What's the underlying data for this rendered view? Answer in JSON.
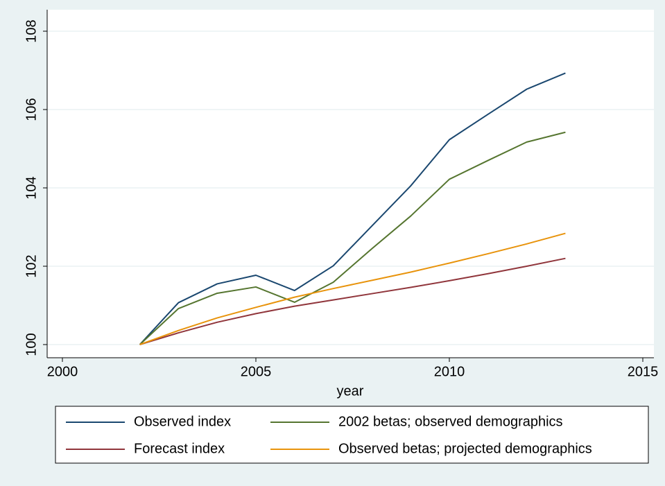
{
  "chart_data": {
    "type": "line",
    "x": [
      2002,
      2003,
      2004,
      2005,
      2006,
      2007,
      2008,
      2009,
      2010,
      2011,
      2012,
      2013
    ],
    "series": [
      {
        "name": "Observed index",
        "color": "#1a476f",
        "values": [
          100,
          101.07,
          101.55,
          101.77,
          101.38,
          102.01,
          103.03,
          104.05,
          105.23,
          105.88,
          106.52,
          106.93
        ]
      },
      {
        "name": "2002 betas; observed demographics",
        "color": "#55752f",
        "values": [
          100,
          100.92,
          101.31,
          101.47,
          101.08,
          101.59,
          102.45,
          103.28,
          104.22,
          104.7,
          105.17,
          105.42
        ]
      },
      {
        "name": "Forecast index",
        "color": "#90353b",
        "values": [
          100,
          100.3,
          100.57,
          100.79,
          100.98,
          101.14,
          101.3,
          101.46,
          101.63,
          101.81,
          102.0,
          102.2
        ]
      },
      {
        "name": "Observed betas; projected demographics",
        "color": "#e8930b",
        "values": [
          100,
          100.36,
          100.68,
          100.95,
          101.21,
          101.43,
          101.64,
          101.85,
          102.08,
          102.32,
          102.57,
          102.84
        ]
      }
    ],
    "xlabel": "year",
    "xlim": [
      2000,
      2015
    ],
    "xticks": [
      2000,
      2005,
      2010,
      2015
    ],
    "ylim": [
      100,
      108
    ],
    "yticks": [
      100,
      102,
      104,
      106,
      108
    ],
    "grid": true,
    "legend": "bottom"
  }
}
